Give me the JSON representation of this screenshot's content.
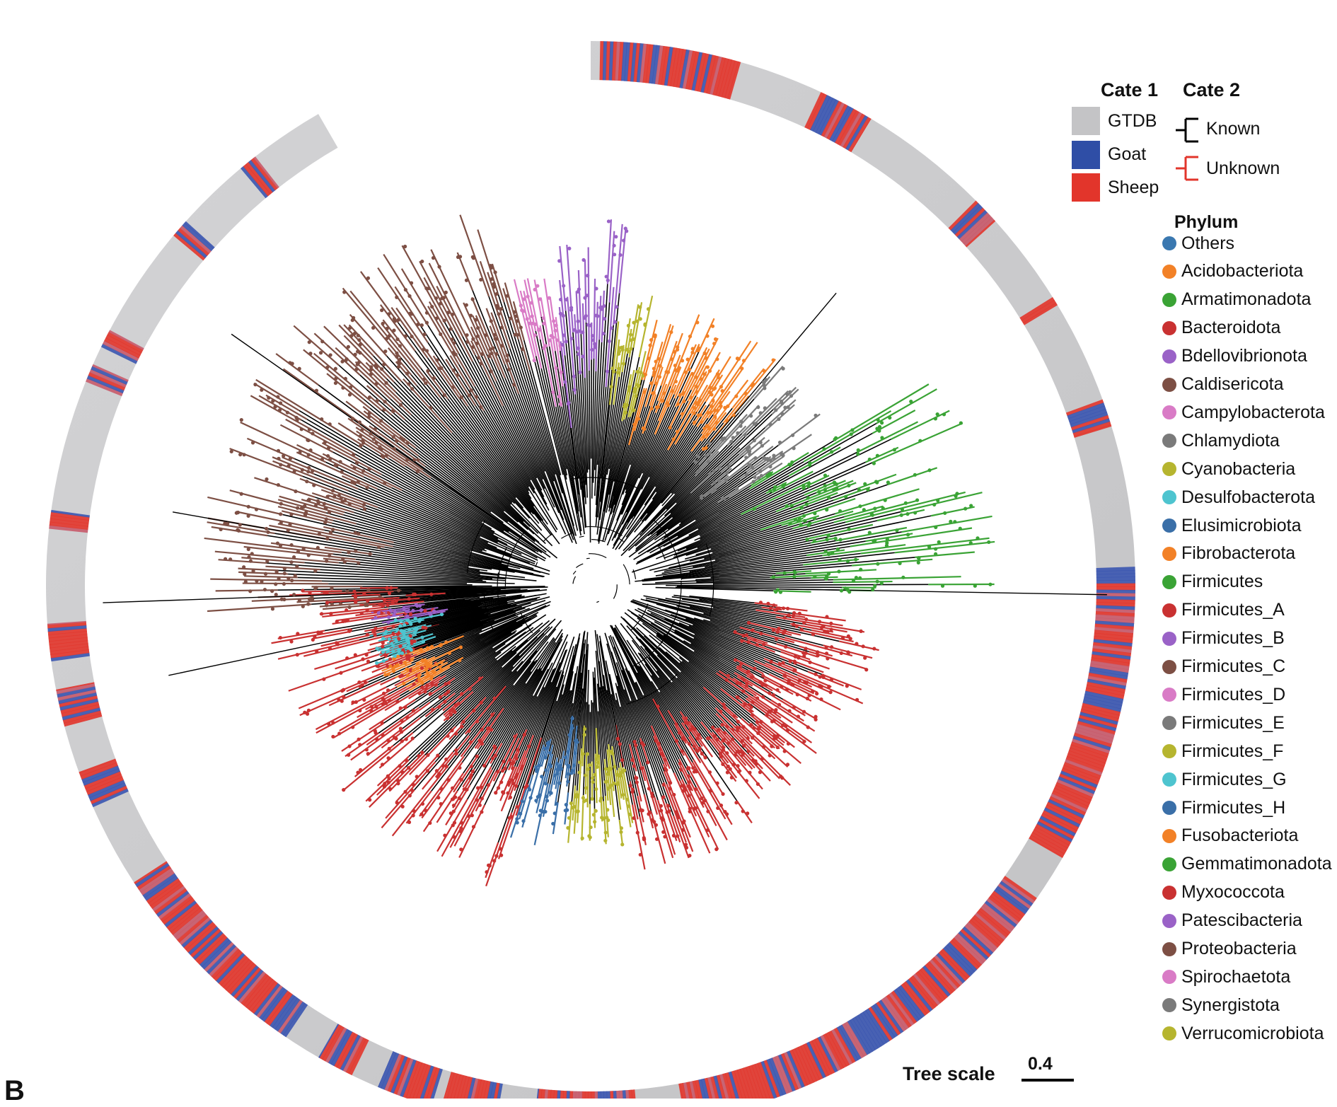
{
  "legend": {
    "cate1": {
      "title": "Cate 1",
      "items": [
        {
          "label": "GTDB",
          "color": "#c4c4c6"
        },
        {
          "label": "Goat",
          "color": "#2f4ea6"
        },
        {
          "label": "Sheep",
          "color": "#e2352b"
        }
      ]
    },
    "cate2": {
      "title": "Cate 2",
      "items": [
        {
          "label": "Known",
          "color": "#000000"
        },
        {
          "label": "Unknown",
          "color": "#e2352b"
        }
      ]
    },
    "phylum": {
      "title": "Phylum",
      "items": [
        {
          "label": "Others",
          "color": "#3a78b0"
        },
        {
          "label": "Acidobacteriota",
          "color": "#f28127"
        },
        {
          "label": "Armatimonadota",
          "color": "#3aa335"
        },
        {
          "label": "Bacteroidota",
          "color": "#c93131"
        },
        {
          "label": "Bdellovibrionota",
          "color": "#9a62c7"
        },
        {
          "label": "Caldisericota",
          "color": "#7d4f44"
        },
        {
          "label": "Campylobacterota",
          "color": "#d97bc6"
        },
        {
          "label": "Chlamydiota",
          "color": "#7a7a7a"
        },
        {
          "label": "Cyanobacteria",
          "color": "#b6b52f"
        },
        {
          "label": "Desulfobacterota",
          "color": "#4ec4cf"
        },
        {
          "label": "Elusimicrobiota",
          "color": "#3a6fa8"
        },
        {
          "label": "Fibrobacterota",
          "color": "#f28127"
        },
        {
          "label": "Firmicutes",
          "color": "#3aa335"
        },
        {
          "label": "Firmicutes_A",
          "color": "#c93131"
        },
        {
          "label": "Firmicutes_B",
          "color": "#9a62c7"
        },
        {
          "label": "Firmicutes_C",
          "color": "#7d4f44"
        },
        {
          "label": "Firmicutes_D",
          "color": "#d97bc6"
        },
        {
          "label": "Firmicutes_E",
          "color": "#7a7a7a"
        },
        {
          "label": "Firmicutes_F",
          "color": "#b6b52f"
        },
        {
          "label": "Firmicutes_G",
          "color": "#4ec4cf"
        },
        {
          "label": "Firmicutes_H",
          "color": "#3a6fa8"
        },
        {
          "label": "Fusobacteriota",
          "color": "#f28127"
        },
        {
          "label": "Gemmatimonadota",
          "color": "#3aa335"
        },
        {
          "label": "Myxococcota",
          "color": "#c93131"
        },
        {
          "label": "Patescibacteria",
          "color": "#9a62c7"
        },
        {
          "label": "Proteobacteria",
          "color": "#7d4f44"
        },
        {
          "label": "Spirochaetota",
          "color": "#d97bc6"
        },
        {
          "label": "Synergistota",
          "color": "#7a7a7a"
        },
        {
          "label": "Verrucomicrobiota",
          "color": "#b6b52f"
        }
      ]
    }
  },
  "tree_scale": {
    "label": "Tree scale",
    "value": "0.4"
  },
  "panel_letter": "B",
  "clades": [
    {
      "phylum": "Caldisericota",
      "color": "#7d4f44"
    },
    {
      "phylum": "Bdellovibrionota",
      "color": "#9a62c7"
    },
    {
      "phylum": "Campylobacterota",
      "color": "#d97bc6"
    },
    {
      "phylum": "Cyanobacteria",
      "color": "#b6b52f"
    },
    {
      "phylum": "Acidobacteriota",
      "color": "#f28127"
    },
    {
      "phylum": "Chlamydiota",
      "color": "#7a7a7a"
    },
    {
      "phylum": "Armatimonadota",
      "color": "#3aa335"
    },
    {
      "phylum": "Bacteroidota",
      "color": "#c93131"
    },
    {
      "phylum": "Elusimicrobiota",
      "color": "#3a6fa8"
    },
    {
      "phylum": "Desulfobacterota",
      "color": "#4ec4cf"
    },
    {
      "phylum": "Fibrobacterota",
      "color": "#f28127"
    }
  ]
}
